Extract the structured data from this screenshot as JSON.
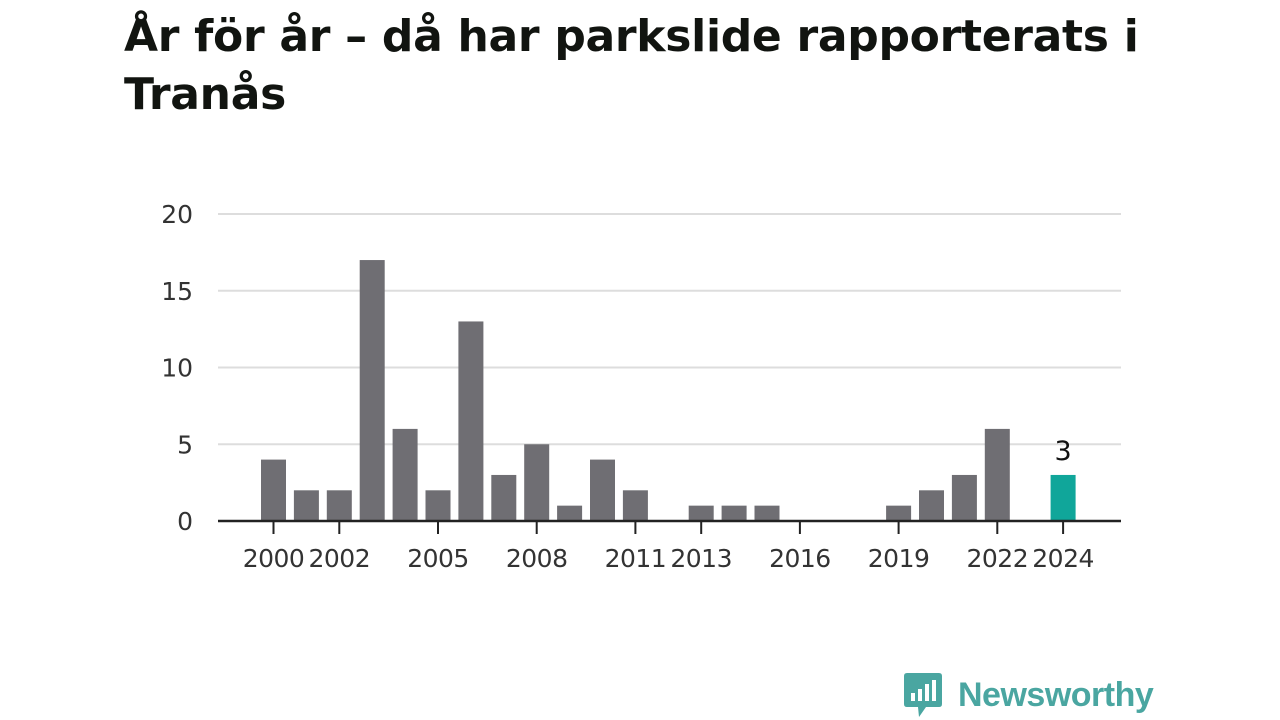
{
  "title": "År för år – då har parkslide rapporterats i Tranås",
  "brand": {
    "name": "Newsworthy",
    "icon": "newsworthy-logo-icon",
    "color": "#4aa6a1"
  },
  "colors": {
    "bar": "#6f6e73",
    "highlight": "#10a69a",
    "grid": "#dddddd",
    "axis": "#222222",
    "text": "#333333"
  },
  "chart_data": {
    "type": "bar",
    "categories": [
      "2000",
      "2001",
      "2002",
      "2003",
      "2004",
      "2005",
      "2006",
      "2007",
      "2008",
      "2009",
      "2010",
      "2011",
      "2012",
      "2013",
      "2014",
      "2015",
      "2016",
      "2017",
      "2018",
      "2019",
      "2020",
      "2021",
      "2022",
      "2023",
      "2024"
    ],
    "values": [
      4,
      2,
      2,
      17,
      6,
      2,
      13,
      3,
      5,
      1,
      4,
      2,
      0,
      1,
      1,
      1,
      0,
      0,
      0,
      1,
      2,
      3,
      6,
      0,
      3
    ],
    "x_tick_labels": [
      "2000",
      "2002",
      "2005",
      "2008",
      "2011",
      "2013",
      "2016",
      "2019",
      "2022",
      "2024"
    ],
    "y_ticks": [
      0,
      5,
      10,
      15,
      20
    ],
    "ylim": [
      0,
      20
    ],
    "highlight": {
      "category": "2024",
      "label": "3"
    },
    "xlabel": "",
    "ylabel": "",
    "grid": true,
    "legend": false
  }
}
